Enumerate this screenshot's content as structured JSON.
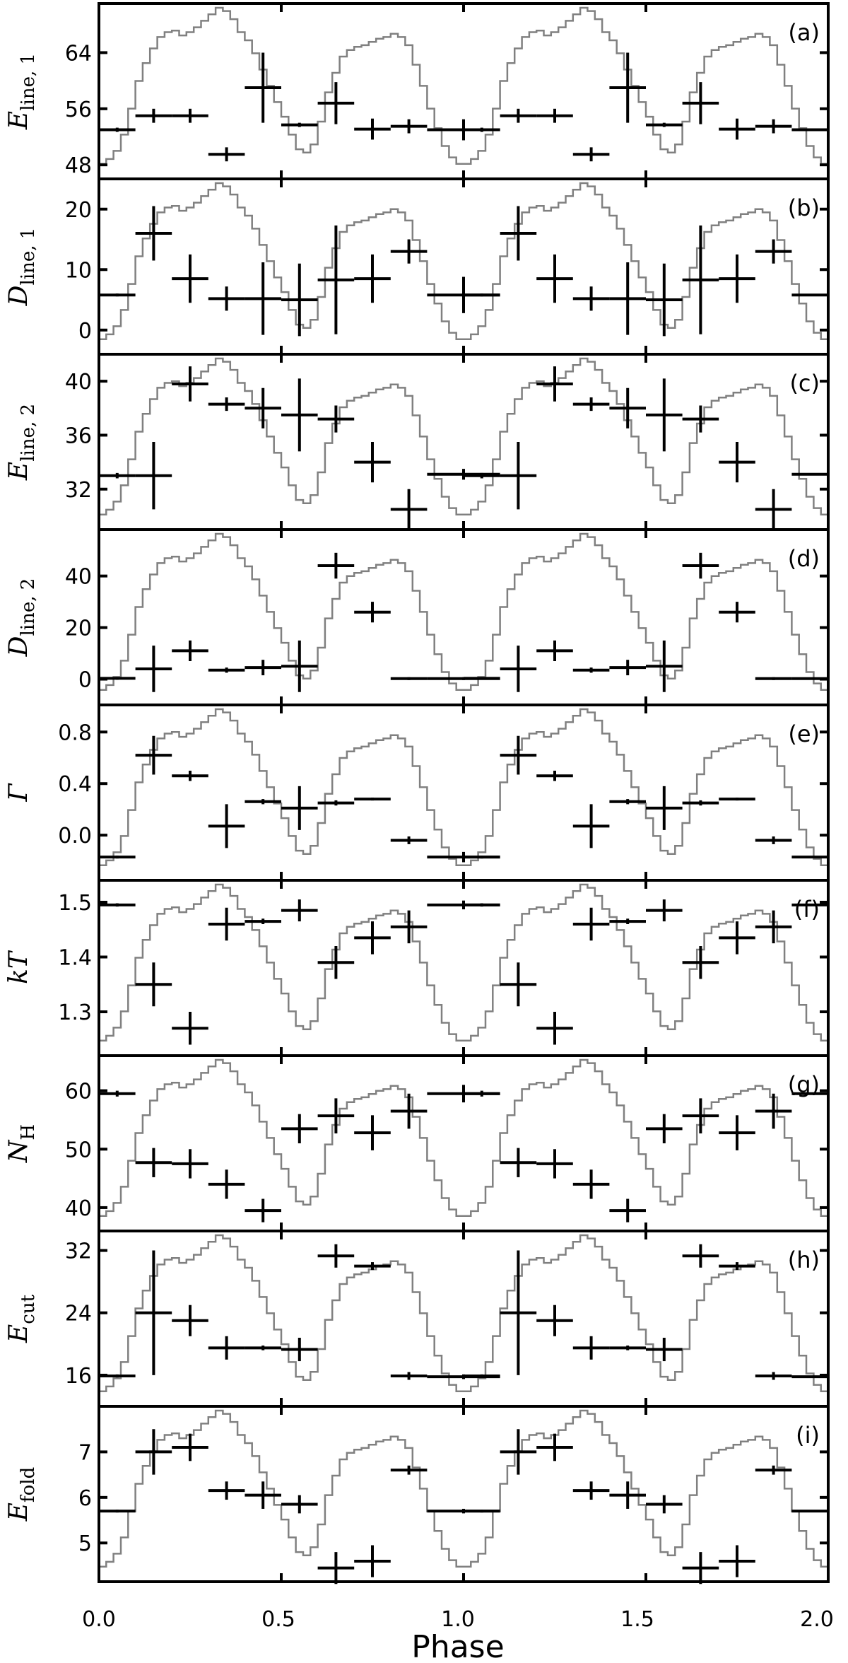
{
  "chart_data": {
    "type": "scatter",
    "xlabel": "Phase",
    "xlim": [
      0.0,
      2.0
    ],
    "x_ticks": [
      "0.0",
      "0.5",
      "1.0",
      "1.5",
      "2.0"
    ],
    "phase_bins": [
      {
        "x": 0.05,
        "xerr": 0.05
      },
      {
        "x": 0.15,
        "xerr": 0.05
      },
      {
        "x": 0.25,
        "xerr": 0.05
      },
      {
        "x": 0.35,
        "xerr": 0.05
      },
      {
        "x": 0.45,
        "xerr": 0.05
      },
      {
        "x": 0.55,
        "xerr": 0.05
      },
      {
        "x": 0.65,
        "xerr": 0.05
      },
      {
        "x": 0.75,
        "xerr": 0.05
      },
      {
        "x": 0.85,
        "xerr": 0.05
      },
      {
        "x": 1.0,
        "xerr": 0.1
      }
    ],
    "profile_color": "#808080",
    "marker_color": "#000000",
    "panels": [
      {
        "label": "(a)",
        "ylabel": "E",
        "ylabel_sub": "line, 1",
        "ylim": [
          46,
          71
        ],
        "yticks": [
          48,
          56,
          64
        ],
        "y": [
          53,
          55,
          55,
          49.5,
          59,
          53.7,
          56.8,
          53.1,
          53.5,
          53
        ],
        "yerr": [
          0.3,
          1,
          1,
          1,
          5,
          0.3,
          3,
          1.5,
          1,
          1.5
        ]
      },
      {
        "label": "(b)",
        "ylabel": "D",
        "ylabel_sub": "line, 1",
        "ylim": [
          -4,
          25
        ],
        "yticks": [
          0,
          10,
          20
        ],
        "y": [
          5.8,
          16,
          8.5,
          5.2,
          5.2,
          5,
          8.3,
          8.5,
          13,
          5.8
        ],
        "yerr": [
          0.2,
          4.5,
          4,
          2,
          6,
          6,
          9,
          4,
          2,
          3
        ]
      },
      {
        "label": "(c)",
        "ylabel": "E",
        "ylabel_sub": "line, 2",
        "ylim": [
          29,
          42
        ],
        "yticks": [
          32,
          36,
          40
        ],
        "y": [
          33,
          33,
          39.8,
          38.3,
          38,
          37.5,
          37.2,
          34,
          30.5,
          33.1
        ],
        "yerr": [
          0.2,
          2.5,
          1.3,
          0.5,
          1.5,
          2.7,
          1,
          1.5,
          1.5,
          0.4
        ]
      },
      {
        "label": "(d)",
        "ylabel": "D",
        "ylabel_sub": "line, 2",
        "ylim": [
          -10,
          58
        ],
        "yticks": [
          0,
          20,
          40
        ],
        "y": [
          0.3,
          4,
          11,
          3.5,
          4.5,
          5,
          44,
          26,
          0.2,
          0.2
        ],
        "yerr": [
          0.3,
          9,
          4,
          1,
          3,
          10,
          5,
          4,
          0.3,
          0.5
        ]
      },
      {
        "label": "(e)",
        "ylabel": "Γ",
        "ylabel_sub": "",
        "ylim": [
          -0.35,
          1.01
        ],
        "yticks": [
          0.0,
          0.4,
          0.8
        ],
        "y": [
          -0.17,
          0.62,
          0.46,
          0.07,
          0.26,
          0.21,
          0.25,
          0.28,
          -0.04,
          -0.17
        ],
        "yerr": [
          0.01,
          0.15,
          0.04,
          0.17,
          0.02,
          0.17,
          0.02,
          0.01,
          0.03,
          0.04
        ]
      },
      {
        "label": "(f)",
        "ylabel": "kT",
        "ylabel_sub": "",
        "ylim": [
          1.22,
          1.54
        ],
        "yticks": [
          1.3,
          1.4,
          1.5
        ],
        "y": [
          1.495,
          1.35,
          1.27,
          1.46,
          1.465,
          1.485,
          1.39,
          1.435,
          1.455,
          1.495
        ],
        "yerr": [
          0.003,
          0.04,
          0.03,
          0.03,
          0.005,
          0.02,
          0.03,
          0.03,
          0.03,
          0.008
        ]
      },
      {
        "label": "(g)",
        "ylabel": "N",
        "ylabel_sub": "H",
        "ylim": [
          36,
          66
        ],
        "yticks": [
          40,
          50,
          60
        ],
        "y": [
          59.5,
          47.7,
          47.5,
          44,
          39.5,
          53.5,
          55.7,
          52.8,
          56.5,
          59.5
        ],
        "yerr": [
          0.5,
          2.5,
          2.5,
          2.5,
          2,
          2.5,
          3,
          3,
          3,
          1.5
        ]
      },
      {
        "label": "(h)",
        "ylabel": "E",
        "ylabel_sub": "cut",
        "ylim": [
          12,
          34.5
        ],
        "yticks": [
          16,
          24,
          32
        ],
        "y": [
          15.9,
          24,
          23,
          19.5,
          19.5,
          19.3,
          31.3,
          30,
          15.9,
          15.8
        ],
        "yerr": [
          0.2,
          8,
          2,
          1.5,
          0.3,
          1.5,
          1.5,
          0.5,
          0.5,
          0.3
        ]
      },
      {
        "label": "(i)",
        "ylabel": "E",
        "ylabel_sub": "fold",
        "ylim": [
          4.15,
          8.0
        ],
        "yticks": [
          5,
          6,
          7
        ],
        "y": [
          5.7,
          7.0,
          7.1,
          6.15,
          6.05,
          5.85,
          4.45,
          4.6,
          6.6,
          5.7
        ],
        "yerr": [
          0.02,
          0.5,
          0.3,
          0.2,
          0.3,
          0.2,
          0.35,
          0.35,
          0.1,
          0.05
        ]
      }
    ],
    "pulse_profile": {
      "x_period": [
        0.0,
        0.02,
        0.04,
        0.06,
        0.08,
        0.1,
        0.12,
        0.14,
        0.16,
        0.18,
        0.2,
        0.22,
        0.24,
        0.26,
        0.28,
        0.3,
        0.32,
        0.34,
        0.36,
        0.38,
        0.4,
        0.42,
        0.44,
        0.46,
        0.48,
        0.5,
        0.52,
        0.54,
        0.56,
        0.58,
        0.6,
        0.62,
        0.64,
        0.66,
        0.68,
        0.7,
        0.72,
        0.74,
        0.76,
        0.78,
        0.8,
        0.82,
        0.84,
        0.86,
        0.88,
        0.9,
        0.92,
        0.94,
        0.96,
        0.98,
        1.0
      ],
      "y_norm": [
        0.04,
        0.07,
        0.12,
        0.22,
        0.38,
        0.55,
        0.66,
        0.75,
        0.82,
        0.85,
        0.86,
        0.83,
        0.85,
        0.88,
        0.92,
        0.96,
        1.0,
        0.98,
        0.93,
        0.85,
        0.8,
        0.72,
        0.62,
        0.52,
        0.42,
        0.33,
        0.22,
        0.13,
        0.11,
        0.16,
        0.3,
        0.48,
        0.6,
        0.7,
        0.74,
        0.76,
        0.77,
        0.79,
        0.81,
        0.82,
        0.84,
        0.82,
        0.77,
        0.65,
        0.52,
        0.38,
        0.26,
        0.15,
        0.08,
        0.04,
        0.04
      ]
    }
  }
}
